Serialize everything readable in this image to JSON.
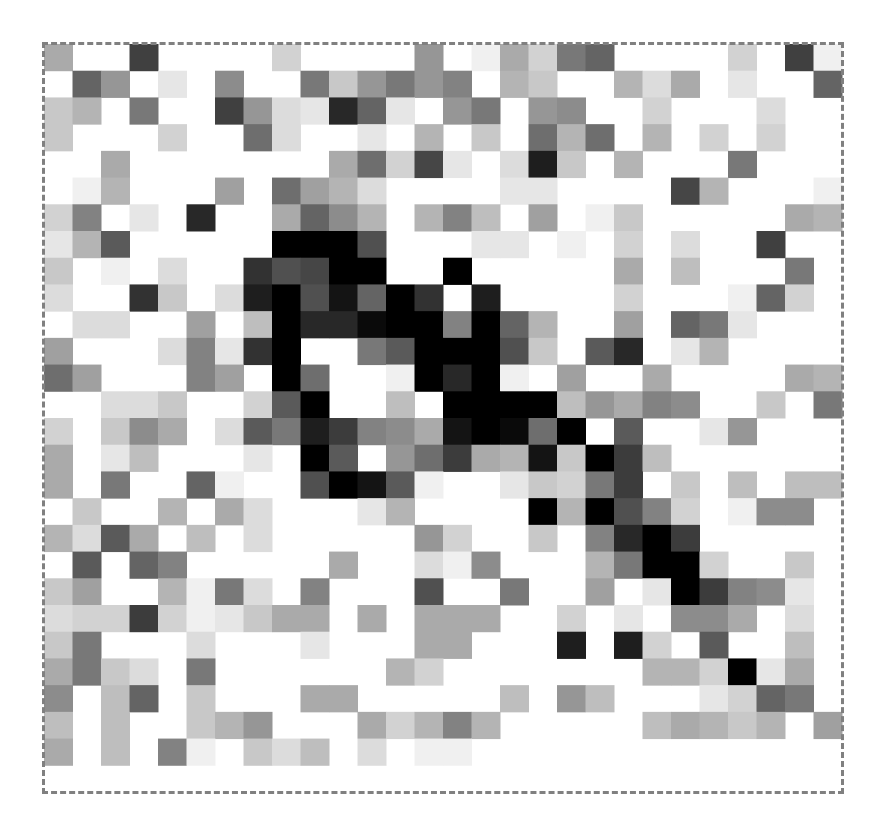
{
  "image": {
    "description_type": "pixelated grayscale noise image",
    "grid": {
      "columns": 28,
      "rows": 28
    },
    "palette": {
      "background": "#ffffff",
      "frame": "#808080",
      "ink": "#000000"
    },
    "pixels": [
      [
        170,
        255,
        255,
        64,
        255,
        255,
        255,
        255,
        210,
        255,
        255,
        255,
        255,
        150,
        255,
        240,
        170,
        210,
        120,
        100,
        255,
        255,
        255,
        255,
        210,
        255,
        64,
        240
      ],
      [
        255,
        100,
        150,
        255,
        230,
        255,
        140,
        255,
        255,
        120,
        200,
        150,
        120,
        150,
        130,
        255,
        180,
        200,
        255,
        255,
        180,
        220,
        170,
        255,
        230,
        255,
        255,
        100
      ],
      [
        200,
        180,
        255,
        120,
        255,
        255,
        64,
        150,
        220,
        230,
        40,
        100,
        230,
        255,
        150,
        120,
        255,
        150,
        140,
        255,
        255,
        210,
        255,
        255,
        255,
        220,
        255,
        255
      ],
      [
        200,
        255,
        255,
        255,
        210,
        255,
        255,
        110,
        220,
        255,
        255,
        230,
        255,
        180,
        255,
        200,
        255,
        110,
        180,
        110,
        255,
        180,
        255,
        210,
        255,
        210,
        255,
        255
      ],
      [
        255,
        255,
        170,
        255,
        255,
        255,
        255,
        255,
        255,
        255,
        170,
        110,
        210,
        70,
        230,
        255,
        220,
        30,
        200,
        255,
        180,
        255,
        255,
        255,
        120,
        255,
        255,
        255
      ],
      [
        255,
        240,
        180,
        255,
        255,
        255,
        160,
        255,
        110,
        160,
        180,
        220,
        255,
        255,
        255,
        255,
        230,
        230,
        255,
        255,
        255,
        255,
        70,
        180,
        255,
        255,
        255,
        240
      ],
      [
        210,
        130,
        255,
        230,
        255,
        40,
        255,
        255,
        170,
        100,
        140,
        180,
        255,
        180,
        130,
        190,
        255,
        160,
        255,
        240,
        200,
        255,
        255,
        255,
        255,
        255,
        170,
        180
      ],
      [
        230,
        180,
        90,
        255,
        255,
        255,
        255,
        255,
        0,
        0,
        0,
        80,
        255,
        255,
        255,
        230,
        230,
        255,
        240,
        255,
        210,
        255,
        220,
        255,
        255,
        64,
        255,
        255
      ],
      [
        200,
        255,
        240,
        255,
        220,
        255,
        255,
        50,
        80,
        70,
        0,
        0,
        255,
        255,
        0,
        255,
        255,
        255,
        255,
        255,
        170,
        255,
        190,
        255,
        255,
        255,
        120,
        255
      ],
      [
        220,
        255,
        255,
        50,
        200,
        255,
        220,
        30,
        0,
        80,
        20,
        100,
        0,
        50,
        255,
        30,
        255,
        255,
        255,
        255,
        210,
        255,
        255,
        255,
        240,
        100,
        210,
        255
      ],
      [
        255,
        220,
        220,
        255,
        255,
        160,
        255,
        190,
        0,
        40,
        40,
        10,
        0,
        0,
        130,
        0,
        100,
        180,
        255,
        255,
        160,
        255,
        100,
        120,
        230,
        255,
        255,
        255
      ],
      [
        160,
        255,
        255,
        255,
        220,
        130,
        230,
        50,
        0,
        255,
        255,
        120,
        90,
        0,
        0,
        0,
        80,
        200,
        255,
        90,
        40,
        255,
        230,
        180,
        255,
        255,
        255,
        255
      ],
      [
        110,
        160,
        255,
        255,
        255,
        130,
        160,
        255,
        0,
        110,
        255,
        255,
        240,
        0,
        40,
        0,
        240,
        255,
        160,
        255,
        255,
        170,
        255,
        255,
        255,
        255,
        170,
        180
      ],
      [
        255,
        255,
        220,
        220,
        200,
        255,
        255,
        210,
        90,
        0,
        255,
        255,
        190,
        255,
        0,
        0,
        0,
        0,
        190,
        150,
        170,
        130,
        140,
        255,
        255,
        200,
        255,
        120
      ],
      [
        210,
        255,
        200,
        140,
        170,
        255,
        220,
        90,
        120,
        30,
        60,
        130,
        140,
        170,
        20,
        0,
        10,
        110,
        0,
        255,
        90,
        255,
        255,
        230,
        150,
        255,
        255,
        255
      ],
      [
        170,
        255,
        230,
        190,
        255,
        255,
        255,
        230,
        255,
        0,
        90,
        255,
        150,
        110,
        60,
        170,
        180,
        20,
        200,
        0,
        60,
        190,
        255,
        255,
        255,
        255,
        255,
        255
      ],
      [
        170,
        255,
        120,
        255,
        255,
        100,
        240,
        255,
        255,
        80,
        0,
        20,
        90,
        240,
        255,
        255,
        230,
        200,
        210,
        120,
        60,
        255,
        200,
        255,
        190,
        255,
        190,
        190
      ],
      [
        255,
        200,
        255,
        255,
        180,
        255,
        170,
        220,
        255,
        255,
        255,
        230,
        180,
        255,
        255,
        255,
        255,
        0,
        180,
        0,
        80,
        130,
        210,
        255,
        240,
        140,
        140,
        255
      ],
      [
        180,
        220,
        90,
        170,
        255,
        190,
        255,
        220,
        255,
        255,
        255,
        255,
        255,
        150,
        210,
        255,
        255,
        200,
        255,
        130,
        40,
        0,
        60,
        255,
        255,
        255,
        255,
        255
      ],
      [
        255,
        90,
        255,
        100,
        130,
        255,
        255,
        255,
        255,
        255,
        170,
        255,
        255,
        220,
        240,
        140,
        255,
        255,
        255,
        180,
        120,
        0,
        0,
        210,
        255,
        255,
        200,
        255
      ],
      [
        200,
        160,
        255,
        255,
        180,
        240,
        120,
        220,
        255,
        130,
        255,
        255,
        255,
        80,
        255,
        255,
        120,
        255,
        255,
        160,
        255,
        230,
        0,
        60,
        130,
        140,
        230,
        255
      ],
      [
        220,
        210,
        210,
        60,
        210,
        240,
        230,
        200,
        170,
        170,
        255,
        170,
        255,
        170,
        170,
        170,
        255,
        255,
        210,
        255,
        230,
        255,
        140,
        140,
        170,
        255,
        220,
        255
      ],
      [
        200,
        120,
        255,
        255,
        255,
        220,
        255,
        255,
        255,
        230,
        255,
        255,
        255,
        170,
        170,
        255,
        255,
        255,
        30,
        255,
        30,
        210,
        255,
        90,
        255,
        255,
        190,
        255
      ],
      [
        170,
        120,
        200,
        220,
        255,
        120,
        255,
        255,
        255,
        255,
        255,
        255,
        180,
        210,
        255,
        255,
        255,
        255,
        255,
        255,
        255,
        180,
        180,
        210,
        0,
        230,
        170,
        255
      ],
      [
        140,
        255,
        190,
        100,
        255,
        200,
        255,
        255,
        255,
        170,
        170,
        255,
        255,
        255,
        255,
        255,
        190,
        255,
        150,
        190,
        255,
        255,
        255,
        230,
        210,
        100,
        120,
        255
      ],
      [
        190,
        255,
        190,
        255,
        255,
        200,
        180,
        150,
        255,
        255,
        255,
        170,
        210,
        180,
        130,
        180,
        255,
        255,
        255,
        255,
        255,
        190,
        170,
        180,
        200,
        180,
        255,
        160
      ],
      [
        170,
        255,
        190,
        255,
        130,
        240,
        255,
        200,
        220,
        190,
        255,
        220,
        255,
        240,
        240,
        255,
        255,
        255,
        255,
        255,
        255,
        255,
        255,
        255,
        255,
        255,
        255,
        255
      ],
      [
        255,
        255,
        255,
        255,
        255,
        255,
        255,
        255,
        255,
        255,
        255,
        255,
        255,
        255,
        255,
        255,
        255,
        255,
        255,
        255,
        255,
        255,
        255,
        255,
        255,
        255,
        255,
        255
      ]
    ]
  }
}
